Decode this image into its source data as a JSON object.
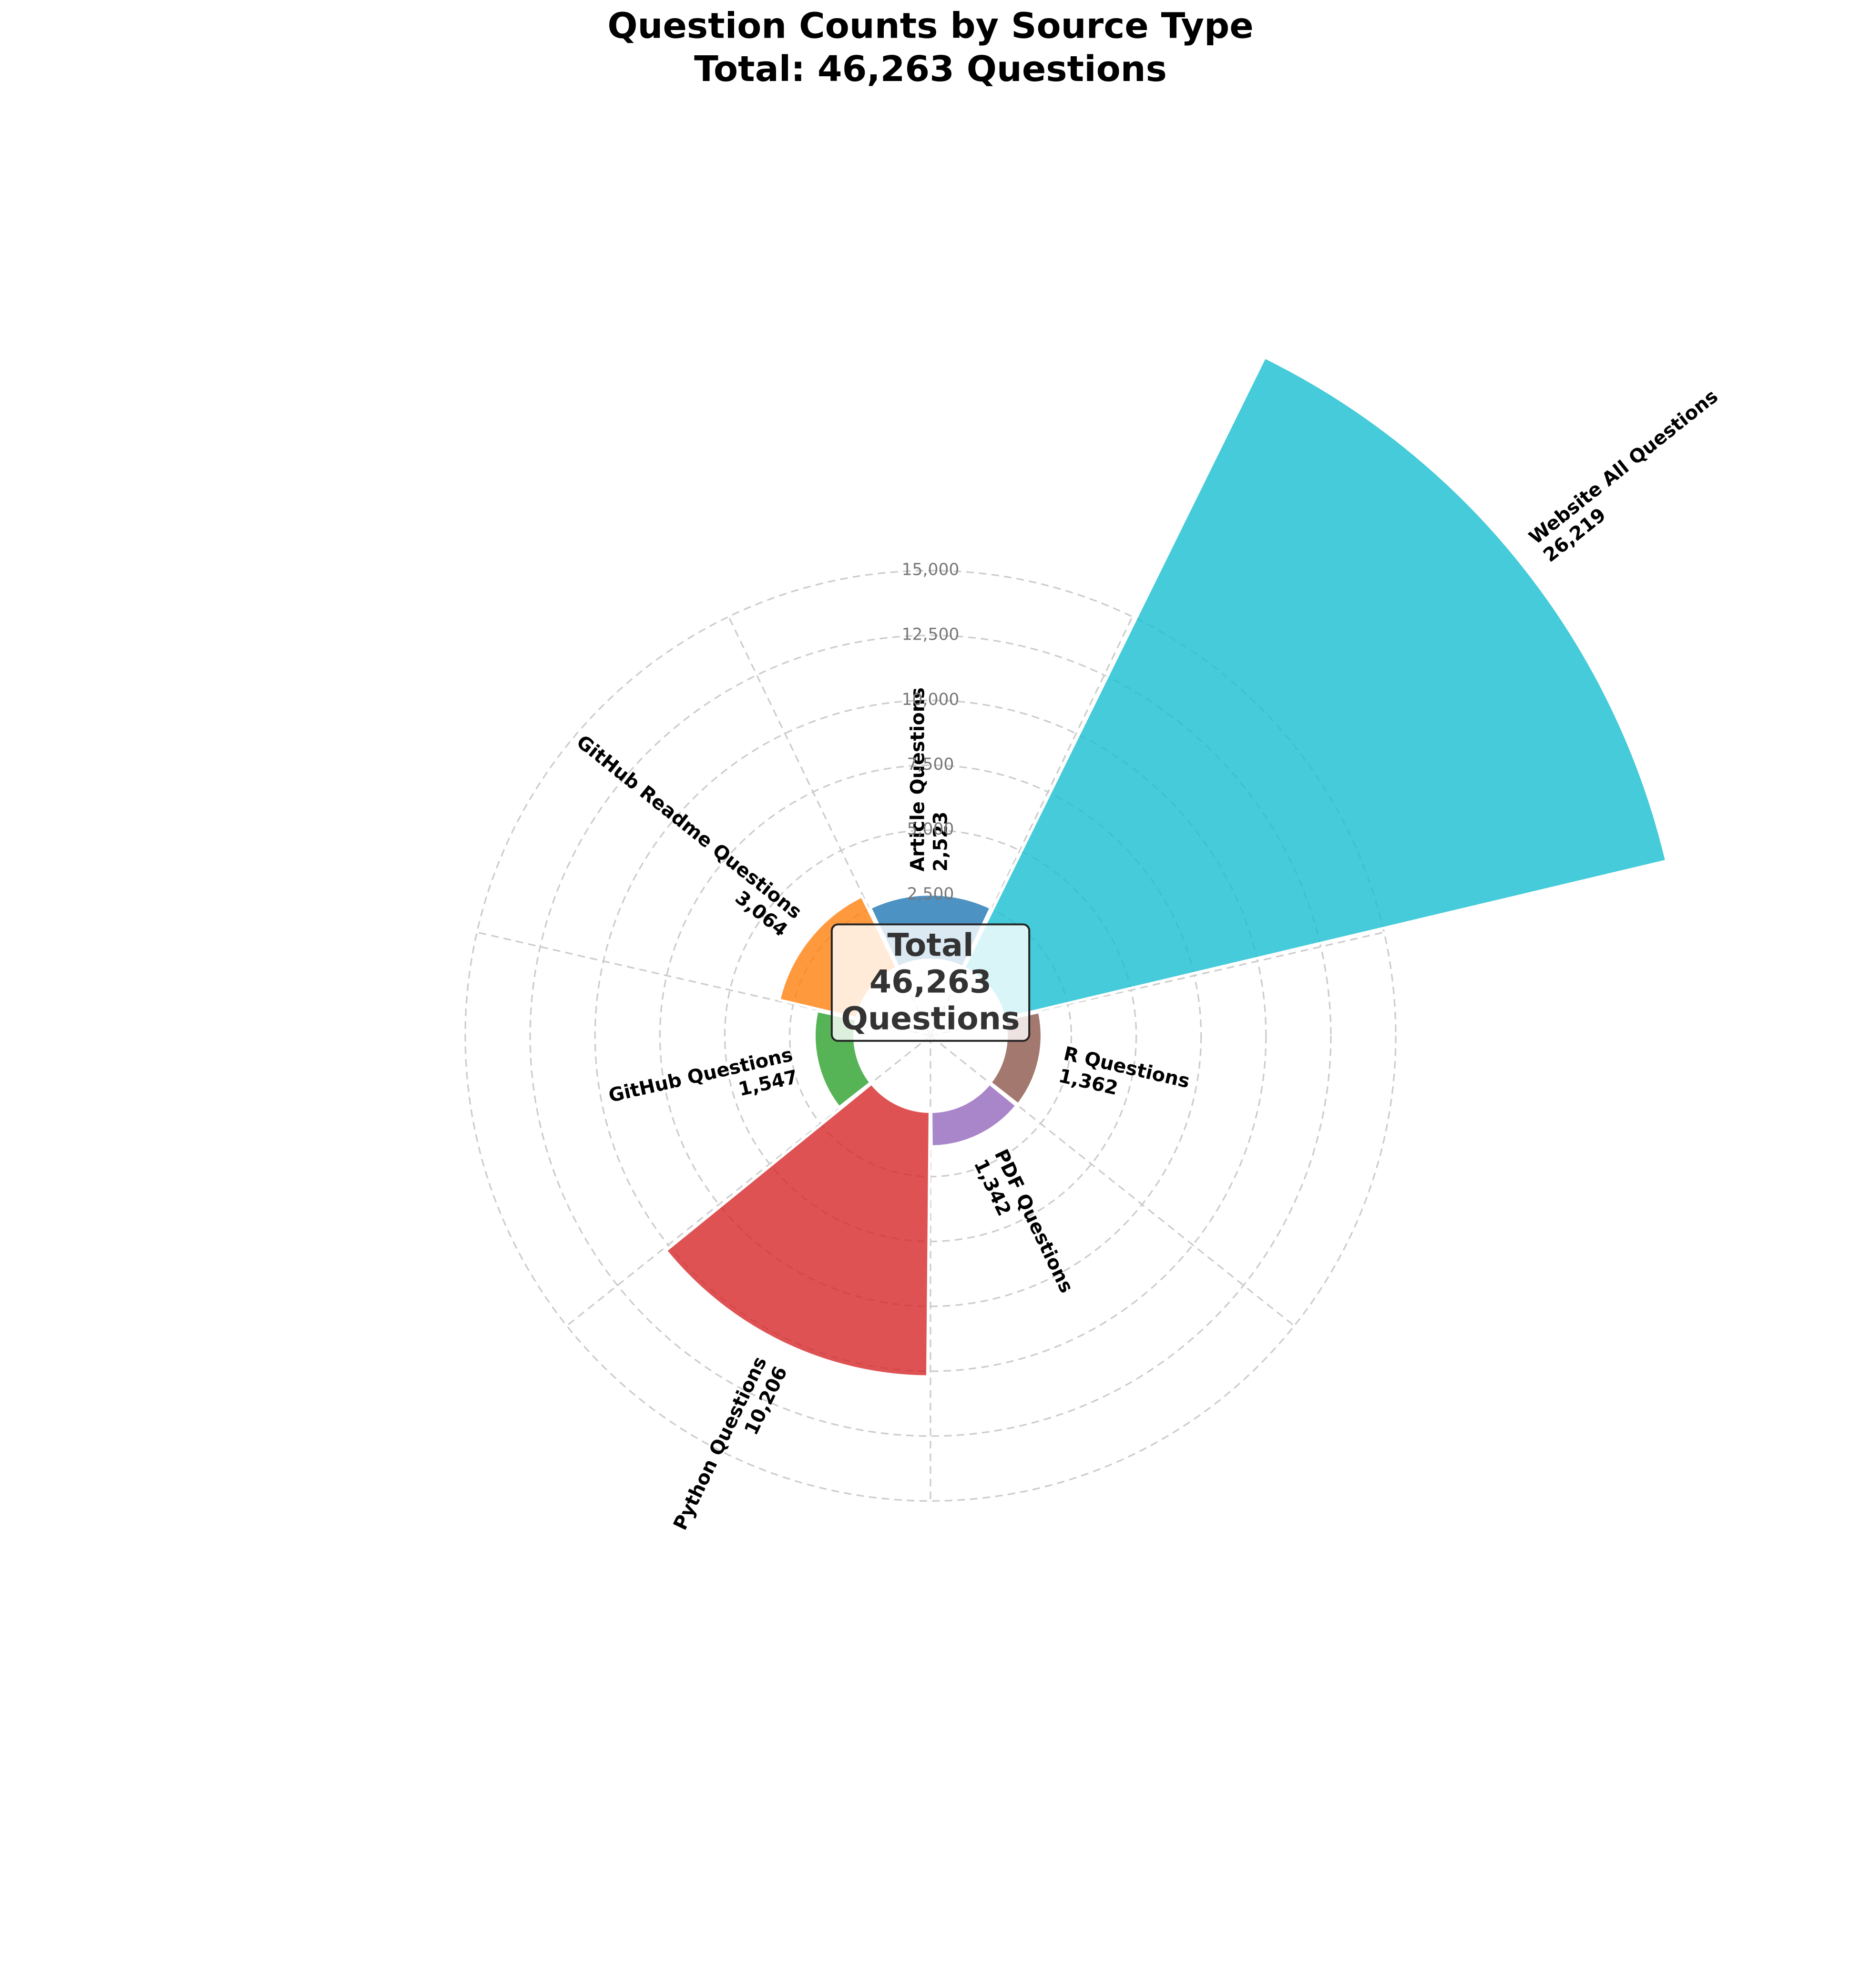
{
  "chart_data": {
    "type": "polar_bar",
    "title": "Question Counts by Source Type",
    "subtitle": "Total: 46,263 Questions",
    "center_label": [
      "Total",
      "46,263",
      "Questions"
    ],
    "categories": [
      "Article Questions",
      "Website All Questions",
      "R Questions",
      "PDF Questions",
      "Python Questions",
      "GitHub Questions",
      "GitHub Readme Questions"
    ],
    "values": [
      2523,
      26219,
      1362,
      1342,
      10206,
      1547,
      3064
    ],
    "value_labels": [
      "2,523",
      "26,219",
      "1,362",
      "1,342",
      "10,206",
      "1,547",
      "3,064"
    ],
    "colors": [
      "#1f77b4",
      "#17becf",
      "#8c564b",
      "#9467bd",
      "#d62728",
      "#2ca02c",
      "#ff7f0e"
    ],
    "ylim": [
      0,
      28000
    ],
    "yticks": [
      {
        "value": 2500,
        "label": "2,500"
      },
      {
        "value": 5000,
        "label": "5,000"
      },
      {
        "value": 7500,
        "label": "7,500"
      },
      {
        "value": 10000,
        "label": "10,000"
      },
      {
        "value": 12500,
        "label": "12,500"
      },
      {
        "value": 15000,
        "label": "15,000"
      }
    ],
    "grid": true
  }
}
